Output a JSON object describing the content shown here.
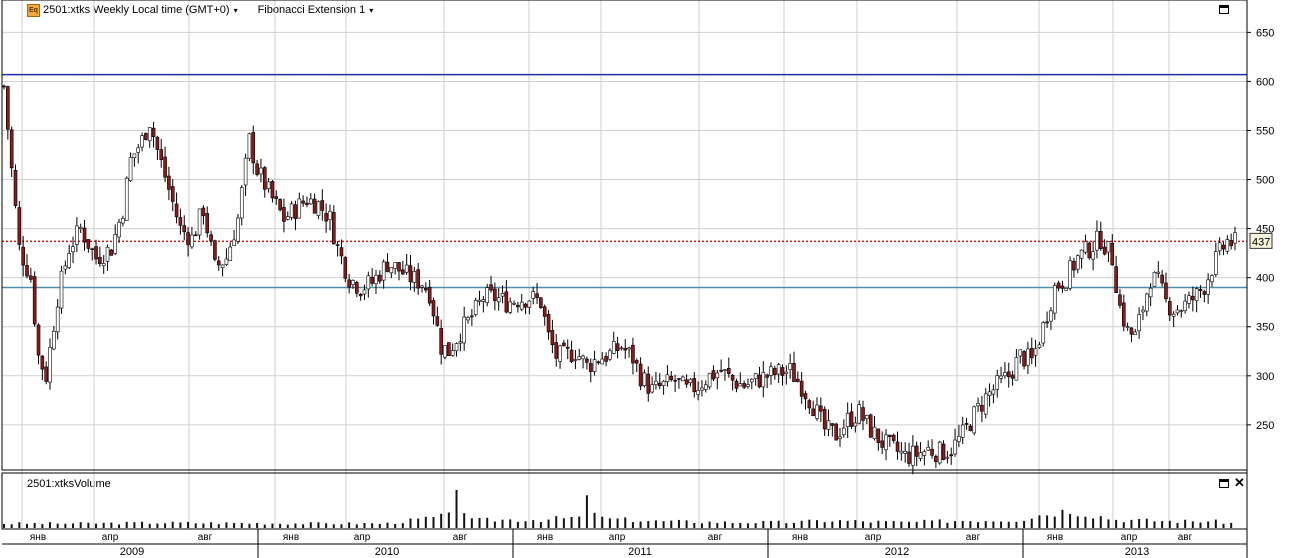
{
  "header": {
    "symbol_label": "2501:xtks Weekly Local time (GMT+0)",
    "study_label": "Fibonacci Extension 1",
    "eq_icon": "Eq",
    "dropdown_icon": "▾"
  },
  "volume_panel": {
    "title": "2501:xtksVolume"
  },
  "price_tag": "437",
  "colors": {
    "up": "#ffffff",
    "down": "#8b1a1a",
    "wick": "#000000",
    "fib_top": "#1d2fb0",
    "fib_mid": "#cc1111",
    "fib_low": "#4f8ea8",
    "grid": "#cfcfcf",
    "volume": "#111111"
  },
  "chart_data": {
    "type": "candlestick",
    "y_ticks": [
      "650",
      "600",
      "550",
      "500",
      "450",
      "400",
      "350",
      "300",
      "250"
    ],
    "ylim": [
      204,
      683
    ],
    "x_month_labels": [
      "янв",
      "апр",
      "авг",
      "янв",
      "апр",
      "авг",
      "янв",
      "апр",
      "авг",
      "янв",
      "апр",
      "авг",
      "янв",
      "апр",
      "авг"
    ],
    "x_year_labels": [
      "2009",
      "2010",
      "2011",
      "2012",
      "2013"
    ],
    "horizontal_lines": [
      {
        "name": "fib_top",
        "value": 607
      },
      {
        "name": "fib_mid",
        "value": 437,
        "style": "dotted"
      },
      {
        "name": "fib_low",
        "value": 390
      }
    ],
    "last_price": 437,
    "grid": true,
    "price_anchors": [
      [
        0,
        595
      ],
      [
        2,
        510
      ],
      [
        4,
        430
      ],
      [
        7,
        400
      ],
      [
        9,
        320
      ],
      [
        11,
        300
      ],
      [
        14,
        380
      ],
      [
        17,
        430
      ],
      [
        20,
        450
      ],
      [
        24,
        420
      ],
      [
        28,
        430
      ],
      [
        31,
        470
      ],
      [
        33,
        520
      ],
      [
        36,
        540
      ],
      [
        38,
        560
      ],
      [
        40,
        530
      ],
      [
        43,
        490
      ],
      [
        46,
        450
      ],
      [
        49,
        440
      ],
      [
        52,
        470
      ],
      [
        55,
        410
      ],
      [
        58,
        420
      ],
      [
        61,
        460
      ],
      [
        64,
        540
      ],
      [
        66,
        510
      ],
      [
        70,
        480
      ],
      [
        73,
        460
      ],
      [
        76,
        470
      ],
      [
        79,
        480
      ],
      [
        82,
        475
      ],
      [
        85,
        460
      ],
      [
        87,
        430
      ],
      [
        90,
        400
      ],
      [
        93,
        390
      ],
      [
        96,
        395
      ],
      [
        100,
        415
      ],
      [
        103,
        408
      ],
      [
        106,
        400
      ],
      [
        109,
        395
      ],
      [
        111,
        385
      ],
      [
        114,
        330
      ],
      [
        116,
        325
      ],
      [
        119,
        345
      ],
      [
        122,
        360
      ],
      [
        125,
        380
      ],
      [
        128,
        380
      ],
      [
        131,
        375
      ],
      [
        134,
        378
      ],
      [
        137,
        380
      ],
      [
        140,
        375
      ],
      [
        142,
        340
      ],
      [
        144,
        320
      ],
      [
        146,
        320
      ],
      [
        149,
        325
      ],
      [
        152,
        310
      ],
      [
        155,
        318
      ],
      [
        158,
        322
      ],
      [
        161,
        330
      ],
      [
        164,
        318
      ],
      [
        166,
        300
      ],
      [
        169,
        285
      ],
      [
        172,
        290
      ],
      [
        175,
        295
      ],
      [
        178,
        285
      ],
      [
        181,
        290
      ],
      [
        184,
        300
      ],
      [
        187,
        305
      ],
      [
        190,
        295
      ],
      [
        193,
        290
      ],
      [
        196,
        295
      ],
      [
        199,
        300
      ],
      [
        202,
        303
      ],
      [
        205,
        305
      ],
      [
        208,
        290
      ],
      [
        211,
        270
      ],
      [
        214,
        245
      ],
      [
        217,
        240
      ],
      [
        220,
        255
      ],
      [
        223,
        262
      ],
      [
        226,
        245
      ],
      [
        229,
        232
      ],
      [
        232,
        225
      ],
      [
        235,
        218
      ],
      [
        238,
        220
      ],
      [
        241,
        225
      ],
      [
        244,
        222
      ],
      [
        247,
        225
      ],
      [
        250,
        240
      ],
      [
        253,
        260
      ],
      [
        256,
        278
      ],
      [
        259,
        290
      ],
      [
        262,
        300
      ],
      [
        265,
        320
      ],
      [
        268,
        315
      ],
      [
        271,
        350
      ],
      [
        274,
        390
      ],
      [
        277,
        400
      ],
      [
        280,
        420
      ],
      [
        283,
        430
      ],
      [
        286,
        440
      ],
      [
        289,
        420
      ],
      [
        291,
        370
      ],
      [
        293,
        345
      ],
      [
        295,
        340
      ],
      [
        297,
        370
      ],
      [
        299,
        400
      ],
      [
        301,
        395
      ],
      [
        303,
        375
      ],
      [
        305,
        368
      ],
      [
        307,
        370
      ],
      [
        309,
        375
      ],
      [
        311,
        382
      ],
      [
        313,
        392
      ],
      [
        315,
        410
      ],
      [
        317,
        425
      ],
      [
        319,
        437
      ],
      [
        321,
        435
      ]
    ],
    "volume_anchors": [
      [
        0,
        0.12
      ],
      [
        20,
        0.12
      ],
      [
        40,
        0.14
      ],
      [
        60,
        0.13
      ],
      [
        80,
        0.12
      ],
      [
        100,
        0.12
      ],
      [
        110,
        0.25
      ],
      [
        116,
        0.32
      ],
      [
        118,
        1.0
      ],
      [
        121,
        0.2
      ],
      [
        130,
        0.22
      ],
      [
        140,
        0.22
      ],
      [
        150,
        0.28
      ],
      [
        152,
        0.7
      ],
      [
        156,
        0.25
      ],
      [
        170,
        0.18
      ],
      [
        190,
        0.15
      ],
      [
        205,
        0.15
      ],
      [
        215,
        0.2
      ],
      [
        235,
        0.15
      ],
      [
        250,
        0.2
      ],
      [
        265,
        0.22
      ],
      [
        270,
        0.35
      ],
      [
        278,
        0.48
      ],
      [
        290,
        0.22
      ],
      [
        305,
        0.18
      ],
      [
        315,
        0.18
      ],
      [
        321,
        0.12
      ]
    ],
    "weeks": 322
  }
}
